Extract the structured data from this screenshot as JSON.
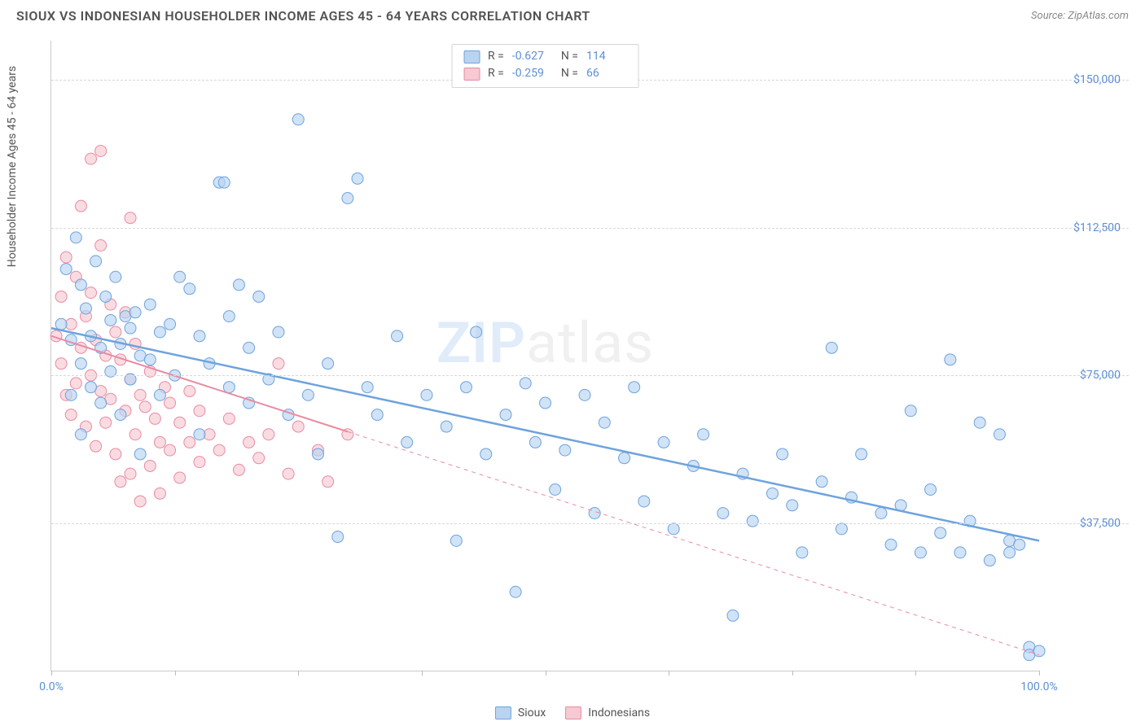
{
  "title": "SIOUX VS INDONESIAN HOUSEHOLDER INCOME AGES 45 - 64 YEARS CORRELATION CHART",
  "source": "Source: ZipAtlas.com",
  "ylabel": "Householder Income Ages 45 - 64 years",
  "watermark_zip": "ZIP",
  "watermark_atlas": "atlas",
  "chart": {
    "type": "scatter",
    "xlim": [
      0,
      100
    ],
    "ylim": [
      0,
      160000
    ],
    "x_ticks": [
      0,
      12.5,
      25,
      37.5,
      50,
      62.5,
      75,
      87.5,
      100
    ],
    "x_tick_labels": {
      "0": "0.0%",
      "100": "100.0%"
    },
    "y_gridlines": [
      37500,
      75000,
      112500,
      150000
    ],
    "y_tick_labels": {
      "37500": "$37,500",
      "75000": "$75,000",
      "112500": "$112,500",
      "150000": "$150,000"
    },
    "background_color": "#ffffff",
    "grid_color": "#d8d8d8",
    "axis_color": "#cccccc",
    "tick_label_color": "#5b8fd6",
    "series": [
      {
        "name": "Sioux",
        "color_fill": "#b9d4f1",
        "color_stroke": "#6ea3dd",
        "marker_radius": 7,
        "fill_opacity": 0.65,
        "r_value": "-0.627",
        "n_value": "114",
        "trend": {
          "x1": 0,
          "y1": 87000,
          "x2": 100,
          "y2": 33000,
          "dash_after_x": null,
          "stroke_width": 2.5
        },
        "points": [
          [
            1,
            88000
          ],
          [
            1.5,
            102000
          ],
          [
            2,
            84000
          ],
          [
            2,
            70000
          ],
          [
            2.5,
            110000
          ],
          [
            3,
            98000
          ],
          [
            3,
            78000
          ],
          [
            3,
            60000
          ],
          [
            3.5,
            92000
          ],
          [
            4,
            85000
          ],
          [
            4,
            72000
          ],
          [
            4.5,
            104000
          ],
          [
            5,
            82000
          ],
          [
            5,
            68000
          ],
          [
            5.5,
            95000
          ],
          [
            6,
            89000
          ],
          [
            6,
            76000
          ],
          [
            6.5,
            100000
          ],
          [
            7,
            83000
          ],
          [
            7,
            65000
          ],
          [
            7.5,
            90000
          ],
          [
            8,
            87000
          ],
          [
            8,
            74000
          ],
          [
            8.5,
            91000
          ],
          [
            9,
            80000
          ],
          [
            9,
            55000
          ],
          [
            10,
            93000
          ],
          [
            10,
            79000
          ],
          [
            11,
            86000
          ],
          [
            11,
            70000
          ],
          [
            12,
            88000
          ],
          [
            12.5,
            75000
          ],
          [
            13,
            100000
          ],
          [
            14,
            97000
          ],
          [
            15,
            60000
          ],
          [
            15,
            85000
          ],
          [
            16,
            78000
          ],
          [
            17,
            124000
          ],
          [
            17.5,
            124000
          ],
          [
            18,
            90000
          ],
          [
            18,
            72000
          ],
          [
            19,
            98000
          ],
          [
            20,
            68000
          ],
          [
            20,
            82000
          ],
          [
            21,
            95000
          ],
          [
            22,
            74000
          ],
          [
            23,
            86000
          ],
          [
            24,
            65000
          ],
          [
            25,
            140000
          ],
          [
            26,
            70000
          ],
          [
            27,
            55000
          ],
          [
            28,
            78000
          ],
          [
            29,
            34000
          ],
          [
            30,
            120000
          ],
          [
            31,
            125000
          ],
          [
            32,
            72000
          ],
          [
            33,
            65000
          ],
          [
            35,
            85000
          ],
          [
            36,
            58000
          ],
          [
            38,
            70000
          ],
          [
            40,
            62000
          ],
          [
            41,
            33000
          ],
          [
            42,
            72000
          ],
          [
            43,
            86000
          ],
          [
            44,
            55000
          ],
          [
            46,
            65000
          ],
          [
            47,
            20000
          ],
          [
            48,
            73000
          ],
          [
            49,
            58000
          ],
          [
            50,
            68000
          ],
          [
            51,
            46000
          ],
          [
            52,
            56000
          ],
          [
            54,
            70000
          ],
          [
            55,
            40000
          ],
          [
            56,
            63000
          ],
          [
            58,
            54000
          ],
          [
            59,
            72000
          ],
          [
            60,
            43000
          ],
          [
            62,
            58000
          ],
          [
            63,
            36000
          ],
          [
            65,
            52000
          ],
          [
            66,
            60000
          ],
          [
            68,
            40000
          ],
          [
            69,
            14000
          ],
          [
            70,
            50000
          ],
          [
            71,
            38000
          ],
          [
            73,
            45000
          ],
          [
            74,
            55000
          ],
          [
            75,
            42000
          ],
          [
            76,
            30000
          ],
          [
            78,
            48000
          ],
          [
            79,
            82000
          ],
          [
            80,
            36000
          ],
          [
            81,
            44000
          ],
          [
            82,
            55000
          ],
          [
            84,
            40000
          ],
          [
            85,
            32000
          ],
          [
            86,
            42000
          ],
          [
            87,
            66000
          ],
          [
            88,
            30000
          ],
          [
            89,
            46000
          ],
          [
            90,
            35000
          ],
          [
            91,
            79000
          ],
          [
            92,
            30000
          ],
          [
            93,
            38000
          ],
          [
            94,
            63000
          ],
          [
            95,
            28000
          ],
          [
            96,
            60000
          ],
          [
            97,
            33000
          ],
          [
            97,
            30000
          ],
          [
            98,
            32000
          ],
          [
            99,
            6000
          ],
          [
            99,
            4000
          ],
          [
            100,
            5000
          ]
        ]
      },
      {
        "name": "Indonesians",
        "color_fill": "#f6c9d3",
        "color_stroke": "#e98ba2",
        "marker_radius": 7,
        "fill_opacity": 0.65,
        "r_value": "-0.259",
        "n_value": "66",
        "trend": {
          "x1": 0,
          "y1": 85000,
          "x2": 100,
          "y2": 4000,
          "dash_after_x": 30,
          "stroke_width": 2
        },
        "points": [
          [
            0.5,
            85000
          ],
          [
            1,
            95000
          ],
          [
            1,
            78000
          ],
          [
            1.5,
            105000
          ],
          [
            1.5,
            70000
          ],
          [
            2,
            88000
          ],
          [
            2,
            65000
          ],
          [
            2.5,
            100000
          ],
          [
            2.5,
            73000
          ],
          [
            3,
            82000
          ],
          [
            3,
            118000
          ],
          [
            3.5,
            90000
          ],
          [
            3.5,
            62000
          ],
          [
            4,
            96000
          ],
          [
            4,
            75000
          ],
          [
            4,
            130000
          ],
          [
            4.5,
            84000
          ],
          [
            4.5,
            57000
          ],
          [
            5,
            108000
          ],
          [
            5,
            71000
          ],
          [
            5,
            132000
          ],
          [
            5.5,
            80000
          ],
          [
            5.5,
            63000
          ],
          [
            6,
            93000
          ],
          [
            6,
            69000
          ],
          [
            6.5,
            86000
          ],
          [
            6.5,
            55000
          ],
          [
            7,
            79000
          ],
          [
            7,
            48000
          ],
          [
            7.5,
            91000
          ],
          [
            7.5,
            66000
          ],
          [
            8,
            74000
          ],
          [
            8,
            50000
          ],
          [
            8,
            115000
          ],
          [
            8.5,
            83000
          ],
          [
            8.5,
            60000
          ],
          [
            9,
            70000
          ],
          [
            9,
            43000
          ],
          [
            9.5,
            67000
          ],
          [
            10,
            76000
          ],
          [
            10,
            52000
          ],
          [
            10.5,
            64000
          ],
          [
            11,
            58000
          ],
          [
            11,
            45000
          ],
          [
            11.5,
            72000
          ],
          [
            12,
            56000
          ],
          [
            12,
            68000
          ],
          [
            13,
            63000
          ],
          [
            13,
            49000
          ],
          [
            14,
            58000
          ],
          [
            14,
            71000
          ],
          [
            15,
            53000
          ],
          [
            15,
            66000
          ],
          [
            16,
            60000
          ],
          [
            17,
            56000
          ],
          [
            18,
            64000
          ],
          [
            19,
            51000
          ],
          [
            20,
            58000
          ],
          [
            21,
            54000
          ],
          [
            22,
            60000
          ],
          [
            23,
            78000
          ],
          [
            24,
            50000
          ],
          [
            25,
            62000
          ],
          [
            27,
            56000
          ],
          [
            28,
            48000
          ],
          [
            30,
            60000
          ]
        ]
      }
    ]
  },
  "legend_bottom": [
    {
      "label": "Sioux",
      "fill": "#b9d4f1",
      "stroke": "#6ea3dd"
    },
    {
      "label": "Indonesians",
      "fill": "#f6c9d3",
      "stroke": "#e98ba2"
    }
  ]
}
